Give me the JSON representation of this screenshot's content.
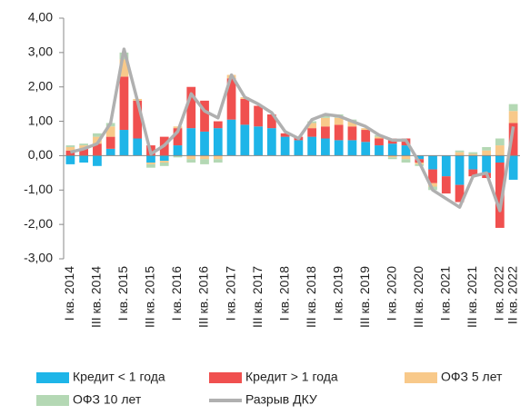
{
  "chart_data": {
    "type": "bar",
    "categories": [
      "I кв. 2014",
      null,
      "III кв. 2014",
      null,
      "I кв. 2015",
      null,
      "III кв. 2015",
      null,
      "I кв. 2016",
      null,
      "III кв. 2016",
      null,
      "I кв. 2017",
      null,
      "III кв. 2017",
      null,
      "I кв. 2018",
      null,
      "III кв. 2018",
      null,
      "I кв. 2019",
      null,
      "III кв. 2019",
      null,
      "I кв. 2020",
      null,
      "III кв. 2020",
      null,
      "I кв. 2021",
      null,
      "III кв. 2021",
      null,
      "I кв. 2022",
      "II кв. 2022"
    ],
    "series": [
      {
        "name": "Кредит < 1 года",
        "color": "#1eb5e8",
        "values": [
          -0.25,
          -0.2,
          -0.3,
          0.2,
          0.75,
          0.5,
          -0.2,
          -0.15,
          0.3,
          0.8,
          0.7,
          0.8,
          1.05,
          0.9,
          0.85,
          0.8,
          0.55,
          0.45,
          0.55,
          0.5,
          0.45,
          0.45,
          0.4,
          0.3,
          0.35,
          0.3,
          -0.1,
          -0.4,
          -0.6,
          -0.85,
          -0.4,
          -0.5,
          -0.2,
          -0.7
        ]
      },
      {
        "name": "Кредит > 1 года",
        "color": "#f0504f",
        "values": [
          0.15,
          0.2,
          0.35,
          0.35,
          1.55,
          1.1,
          0.3,
          0.55,
          0.5,
          1.2,
          0.9,
          0.2,
          1.2,
          0.75,
          0.6,
          0.4,
          0.1,
          0.1,
          0.25,
          0.35,
          0.45,
          0.4,
          0.35,
          0.2,
          0.15,
          0.2,
          -0.1,
          -0.4,
          -0.5,
          -0.5,
          -0.2,
          -0.15,
          -1.9,
          0.95
        ]
      },
      {
        "name": "ОФЗ 5 лет",
        "color": "#f8c98a",
        "values": [
          0.1,
          0.1,
          0.2,
          0.3,
          0.5,
          0.05,
          -0.05,
          -0.05,
          0.05,
          -0.1,
          -0.1,
          -0.1,
          0.1,
          0.05,
          0,
          0,
          0,
          0,
          0.15,
          0.25,
          0.2,
          0.15,
          0.05,
          0.05,
          -0.05,
          -0.1,
          -0.05,
          -0.1,
          0,
          0.1,
          0.05,
          0.15,
          0.3,
          0.35
        ]
      },
      {
        "name": "ОФЗ 10 лет",
        "color": "#b4d8b4",
        "values": [
          0.05,
          0.05,
          0.1,
          0.1,
          0.2,
          0,
          -0.1,
          -0.1,
          -0.05,
          -0.1,
          -0.15,
          -0.1,
          0,
          0,
          0,
          0,
          0,
          0,
          0.05,
          0.1,
          0.1,
          0.05,
          0,
          0.05,
          -0.05,
          -0.1,
          -0.05,
          -0.1,
          0,
          0.05,
          0.05,
          0.1,
          0.2,
          0.2
        ]
      },
      {
        "name": "Разрыв ДКУ",
        "color": "#b0b0b0",
        "type": "line",
        "values": [
          0.1,
          0.2,
          0.35,
          0.95,
          3.1,
          1.6,
          0.05,
          0.3,
          0.7,
          1.8,
          1.3,
          1.1,
          2.35,
          1.7,
          1.5,
          1.25,
          0.7,
          0.5,
          1.05,
          1.2,
          1.15,
          1.0,
          0.85,
          0.6,
          0.45,
          0.45,
          -0.2,
          -1.0,
          -1.25,
          -1.5,
          -0.6,
          -0.5,
          -1.6,
          0.85
        ]
      }
    ],
    "ylim": [
      -3,
      4
    ],
    "yticks": [
      {
        "value": -3,
        "label": "-3,00"
      },
      {
        "value": -2,
        "label": "-2,00"
      },
      {
        "value": -1,
        "label": "-1,00"
      },
      {
        "value": 0,
        "label": "0,00"
      },
      {
        "value": 1,
        "label": "1,00"
      },
      {
        "value": 2,
        "label": "2,00"
      },
      {
        "value": 3,
        "label": "3,00"
      },
      {
        "value": 4,
        "label": "4,00"
      }
    ]
  }
}
